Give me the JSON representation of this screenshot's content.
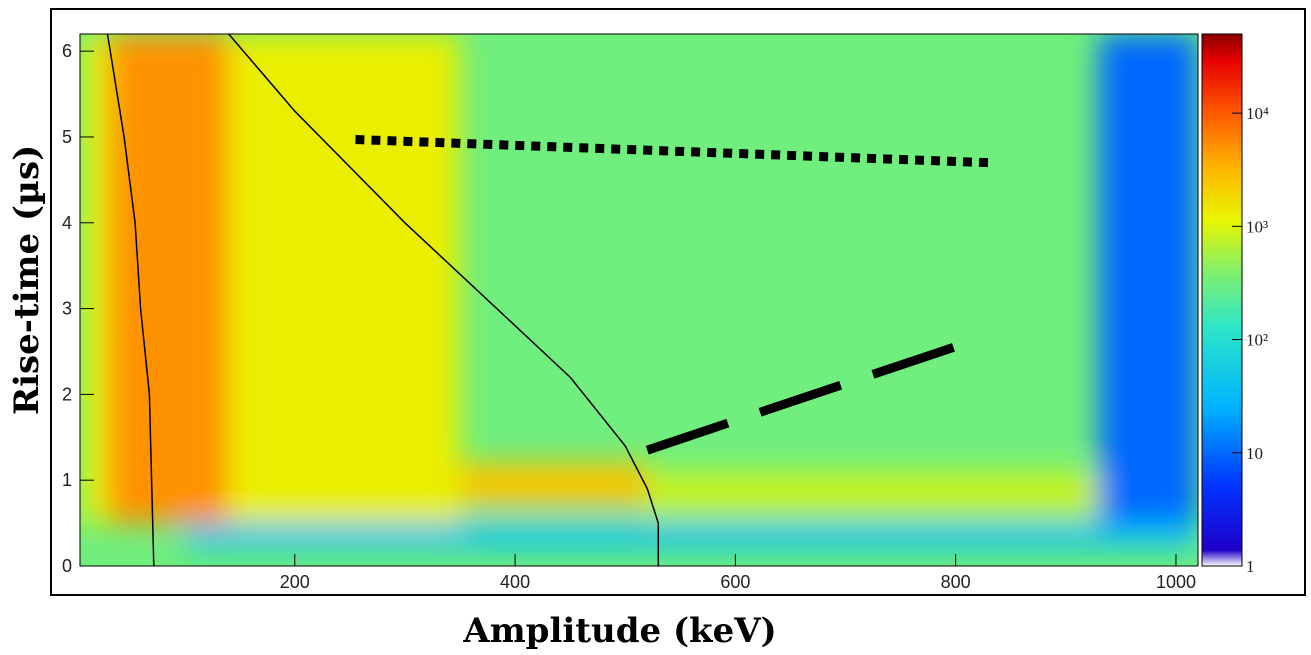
{
  "chart_data": {
    "type": "heatmap",
    "title": "",
    "xlabel": "Amplitude (keV)",
    "ylabel": "Rise-time (µs)",
    "xlim": [
      5,
      1020
    ],
    "ylim": [
      0,
      6.2
    ],
    "x_ticks": [
      200,
      400,
      600,
      800,
      1000
    ],
    "y_ticks": [
      0,
      1,
      2,
      3,
      4,
      5,
      6
    ],
    "colorbar": {
      "scale": "log",
      "range": [
        1,
        50000
      ],
      "tick_values": [
        1,
        10,
        100,
        1000,
        10000
      ],
      "tick_labels": [
        "1",
        "10",
        "10²",
        "10³",
        "10⁴"
      ]
    },
    "regions": [
      {
        "x": [
          5,
          30
        ],
        "y": [
          0.5,
          6.2
        ],
        "level": 3.0
      },
      {
        "x": [
          30,
          140
        ],
        "y": [
          0.5,
          6.2
        ],
        "level": 3.7
      },
      {
        "x": [
          140,
          350
        ],
        "y": [
          0.5,
          6.2
        ],
        "level": 3.1
      },
      {
        "x": [
          350,
          520
        ],
        "y": [
          0.7,
          1.2
        ],
        "level": 3.4
      },
      {
        "x": [
          520,
          1020
        ],
        "y": [
          0.6,
          1.1
        ],
        "level": 2.9
      },
      {
        "x": [
          100,
          1020
        ],
        "y": [
          0.2,
          0.5
        ],
        "level": 1.6
      },
      {
        "x": [
          930,
          1020
        ],
        "y": [
          0.5,
          6.2
        ],
        "level": 1.0
      }
    ],
    "curves": [
      {
        "style": "solid",
        "x": [
          30,
          45,
          55,
          60,
          68,
          70,
          72
        ],
        "y": [
          6.2,
          5.0,
          4.0,
          3.0,
          2.0,
          1.0,
          0
        ]
      },
      {
        "style": "solid",
        "x": [
          140,
          200,
          300,
          400,
          450,
          500,
          520,
          530,
          530
        ],
        "y": [
          6.2,
          5.3,
          4.0,
          2.8,
          2.2,
          1.4,
          0.9,
          0.5,
          0
        ]
      },
      {
        "style": "dotted",
        "x": [
          255,
          830
        ],
        "y": [
          4.97,
          4.7
        ]
      },
      {
        "style": "dashed",
        "x": [
          520,
          810
        ],
        "y": [
          1.35,
          2.6
        ]
      }
    ]
  }
}
